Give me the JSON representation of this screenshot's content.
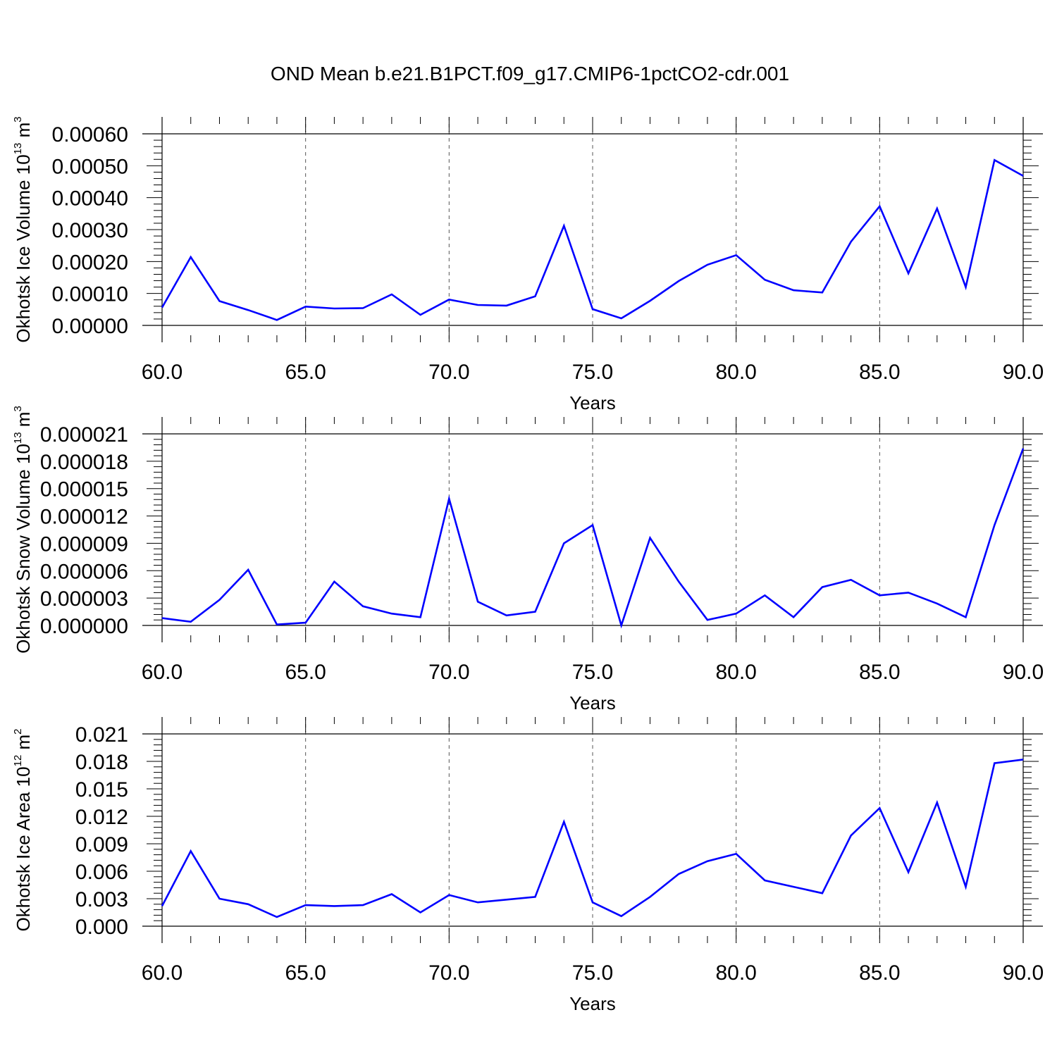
{
  "title": "OND Mean b.e21.B1PCT.f09_g17.CMIP6-1pctCO2-cdr.001",
  "chart_data": [
    {
      "type": "line",
      "ylabel": {
        "text": "Okhotsk Ice Volume 10",
        "exp": "13",
        "unit": "m",
        "unit_exp": "3"
      },
      "xlabel": "Years",
      "xlim": [
        60,
        90
      ],
      "ylim": [
        0,
        0.0006
      ],
      "yticks": [
        "0.00000",
        "0.00010",
        "0.00020",
        "0.00030",
        "0.00040",
        "0.00050",
        "0.00060"
      ],
      "xticks": [
        "60.0",
        "65.0",
        "70.0",
        "75.0",
        "80.0",
        "85.0",
        "90.0"
      ],
      "grid": "vertical dashed at major x ticks",
      "color": "#0000ff",
      "x": [
        60,
        61,
        62,
        63,
        64,
        65,
        66,
        67,
        68,
        69,
        70,
        71,
        72,
        73,
        74,
        75,
        76,
        77,
        78,
        79,
        80,
        81,
        82,
        83,
        84,
        85,
        86,
        87,
        88,
        89,
        90
      ],
      "values": [
        5.6e-05,
        0.000214,
        7.6e-05,
        4.8e-05,
        1.7e-05,
        5.9e-05,
        5.3e-05,
        5.4e-05,
        9.7e-05,
        3.3e-05,
        8.1e-05,
        6.4e-05,
        6.2e-05,
        9.1e-05,
        0.000312,
        5.1e-05,
        2.2e-05,
        7.7e-05,
        0.000139,
        0.00019,
        0.00022,
        0.000143,
        0.00011,
        0.000103,
        0.000262,
        0.000373,
        0.000163,
        0.000366,
        0.00012,
        0.000518,
        0.000468
      ]
    },
    {
      "type": "line",
      "ylabel": {
        "text": "Okhotsk Snow Volume 10",
        "exp": "13",
        "unit": "m",
        "unit_exp": "3"
      },
      "xlabel": "Years",
      "xlim": [
        60,
        90
      ],
      "ylim": [
        0,
        2.1e-05
      ],
      "yticks": [
        "0.000000",
        "0.000003",
        "0.000006",
        "0.000009",
        "0.000012",
        "0.000015",
        "0.000018",
        "0.000021"
      ],
      "xticks": [
        "60.0",
        "65.0",
        "70.0",
        "75.0",
        "80.0",
        "85.0",
        "90.0"
      ],
      "grid": "vertical dashed at major x ticks",
      "color": "#0000ff",
      "x": [
        60,
        61,
        62,
        63,
        64,
        65,
        66,
        67,
        68,
        69,
        70,
        71,
        72,
        73,
        74,
        75,
        76,
        77,
        78,
        79,
        80,
        81,
        82,
        83,
        84,
        85,
        86,
        87,
        88,
        89,
        90
      ],
      "values": [
        8e-07,
        4e-07,
        2.8e-06,
        6.1e-06,
        1e-07,
        3e-07,
        4.8e-06,
        2.1e-06,
        1.3e-06,
        9e-07,
        1.39e-05,
        2.6e-06,
        1.1e-06,
        1.5e-06,
        9e-06,
        1.1e-05,
        0.0,
        9.6e-06,
        4.8e-06,
        6e-07,
        1.3e-06,
        3.3e-06,
        9e-07,
        4.2e-06,
        5e-06,
        3.3e-06,
        3.6e-06,
        2.4e-06,
        9e-07,
        1.1e-05,
        1.94e-05
      ]
    },
    {
      "type": "line",
      "ylabel": {
        "text": "Okhotsk Ice Area 10",
        "exp": "12",
        "unit": "m",
        "unit_exp": "2"
      },
      "xlabel": "Years",
      "xlim": [
        60,
        90
      ],
      "ylim": [
        0,
        0.021
      ],
      "yticks": [
        "0.000",
        "0.003",
        "0.006",
        "0.009",
        "0.012",
        "0.015",
        "0.018",
        "0.021"
      ],
      "xticks": [
        "60.0",
        "65.0",
        "70.0",
        "75.0",
        "80.0",
        "85.0",
        "90.0"
      ],
      "grid": "vertical dashed at major x ticks",
      "color": "#0000ff",
      "x": [
        60,
        61,
        62,
        63,
        64,
        65,
        66,
        67,
        68,
        69,
        70,
        71,
        72,
        73,
        74,
        75,
        76,
        77,
        78,
        79,
        80,
        81,
        82,
        83,
        84,
        85,
        86,
        87,
        88,
        89,
        90
      ],
      "values": [
        0.0022,
        0.0082,
        0.003,
        0.0024,
        0.001,
        0.0023,
        0.0022,
        0.0023,
        0.0035,
        0.0015,
        0.0034,
        0.0026,
        0.0029,
        0.0032,
        0.0114,
        0.0026,
        0.0011,
        0.0032,
        0.0057,
        0.0071,
        0.0079,
        0.005,
        0.0043,
        0.0036,
        0.0099,
        0.0129,
        0.0059,
        0.0135,
        0.0043,
        0.0178,
        0.0182
      ]
    }
  ]
}
